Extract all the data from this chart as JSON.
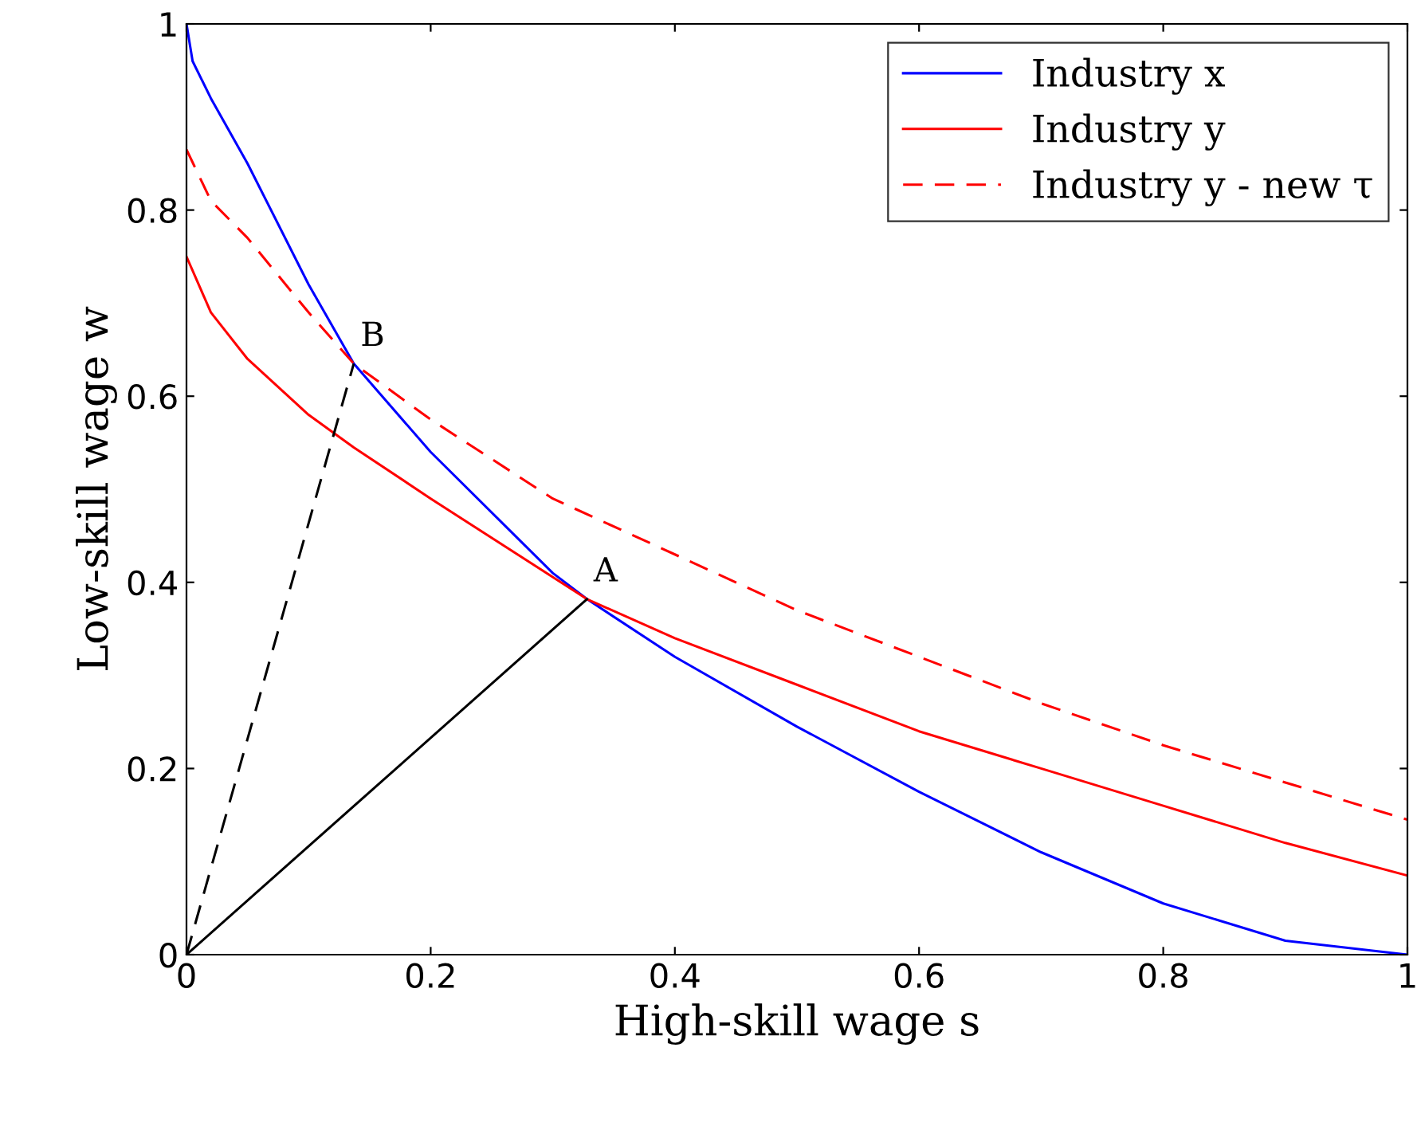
{
  "chart_data": {
    "type": "line",
    "xlabel": "High-skill wage s",
    "ylabel": "Low-skill wage w",
    "xlim": [
      0,
      1
    ],
    "ylim": [
      0,
      1
    ],
    "xticks": [
      0,
      0.2,
      0.4,
      0.6,
      0.8,
      1
    ],
    "yticks": [
      0,
      0.2,
      0.4,
      0.6,
      0.8,
      1
    ],
    "grid": false,
    "legend": "top right",
    "marker": "none",
    "series": [
      {
        "name": "Industry x",
        "color": "#0000ff",
        "line_style": "solid",
        "x": [
          0,
          0.005,
          0.02,
          0.05,
          0.1,
          0.137,
          0.2,
          0.3,
          0.328,
          0.4,
          0.5,
          0.6,
          0.7,
          0.8,
          0.9,
          1.0
        ],
        "values": [
          1.0,
          0.96,
          0.92,
          0.85,
          0.72,
          0.635,
          0.54,
          0.41,
          0.382,
          0.32,
          0.245,
          0.175,
          0.11,
          0.055,
          0.015,
          0.0
        ]
      },
      {
        "name": "Industry y",
        "color": "#ff0000",
        "line_style": "solid",
        "x": [
          0,
          0.02,
          0.05,
          0.1,
          0.137,
          0.2,
          0.328,
          0.4,
          0.5,
          0.6,
          0.7,
          0.8,
          0.9,
          1.0
        ],
        "values": [
          0.75,
          0.69,
          0.64,
          0.58,
          0.545,
          0.49,
          0.382,
          0.34,
          0.29,
          0.24,
          0.2,
          0.16,
          0.12,
          0.085
        ]
      },
      {
        "name": "Industry y - new τ",
        "color": "#ff0000",
        "line_style": "dashed",
        "x": [
          0,
          0.02,
          0.05,
          0.1,
          0.137,
          0.2,
          0.3,
          0.4,
          0.5,
          0.6,
          0.7,
          0.8,
          0.9,
          1.0
        ],
        "values": [
          0.865,
          0.81,
          0.77,
          0.69,
          0.635,
          0.575,
          0.49,
          0.43,
          0.37,
          0.32,
          0.27,
          0.225,
          0.185,
          0.145
        ]
      },
      {
        "color": "#000000",
        "line_style": "solid",
        "x": [
          0,
          0.328
        ],
        "values": [
          0,
          0.382
        ]
      },
      {
        "color": "#000000",
        "line_style": "dashed",
        "x": [
          0,
          0.137
        ],
        "values": [
          0,
          0.635
        ]
      }
    ],
    "annotations": [
      {
        "text": "A",
        "x": 0.328,
        "y": 0.382
      },
      {
        "text": "B",
        "x": 0.137,
        "y": 0.635
      }
    ]
  }
}
